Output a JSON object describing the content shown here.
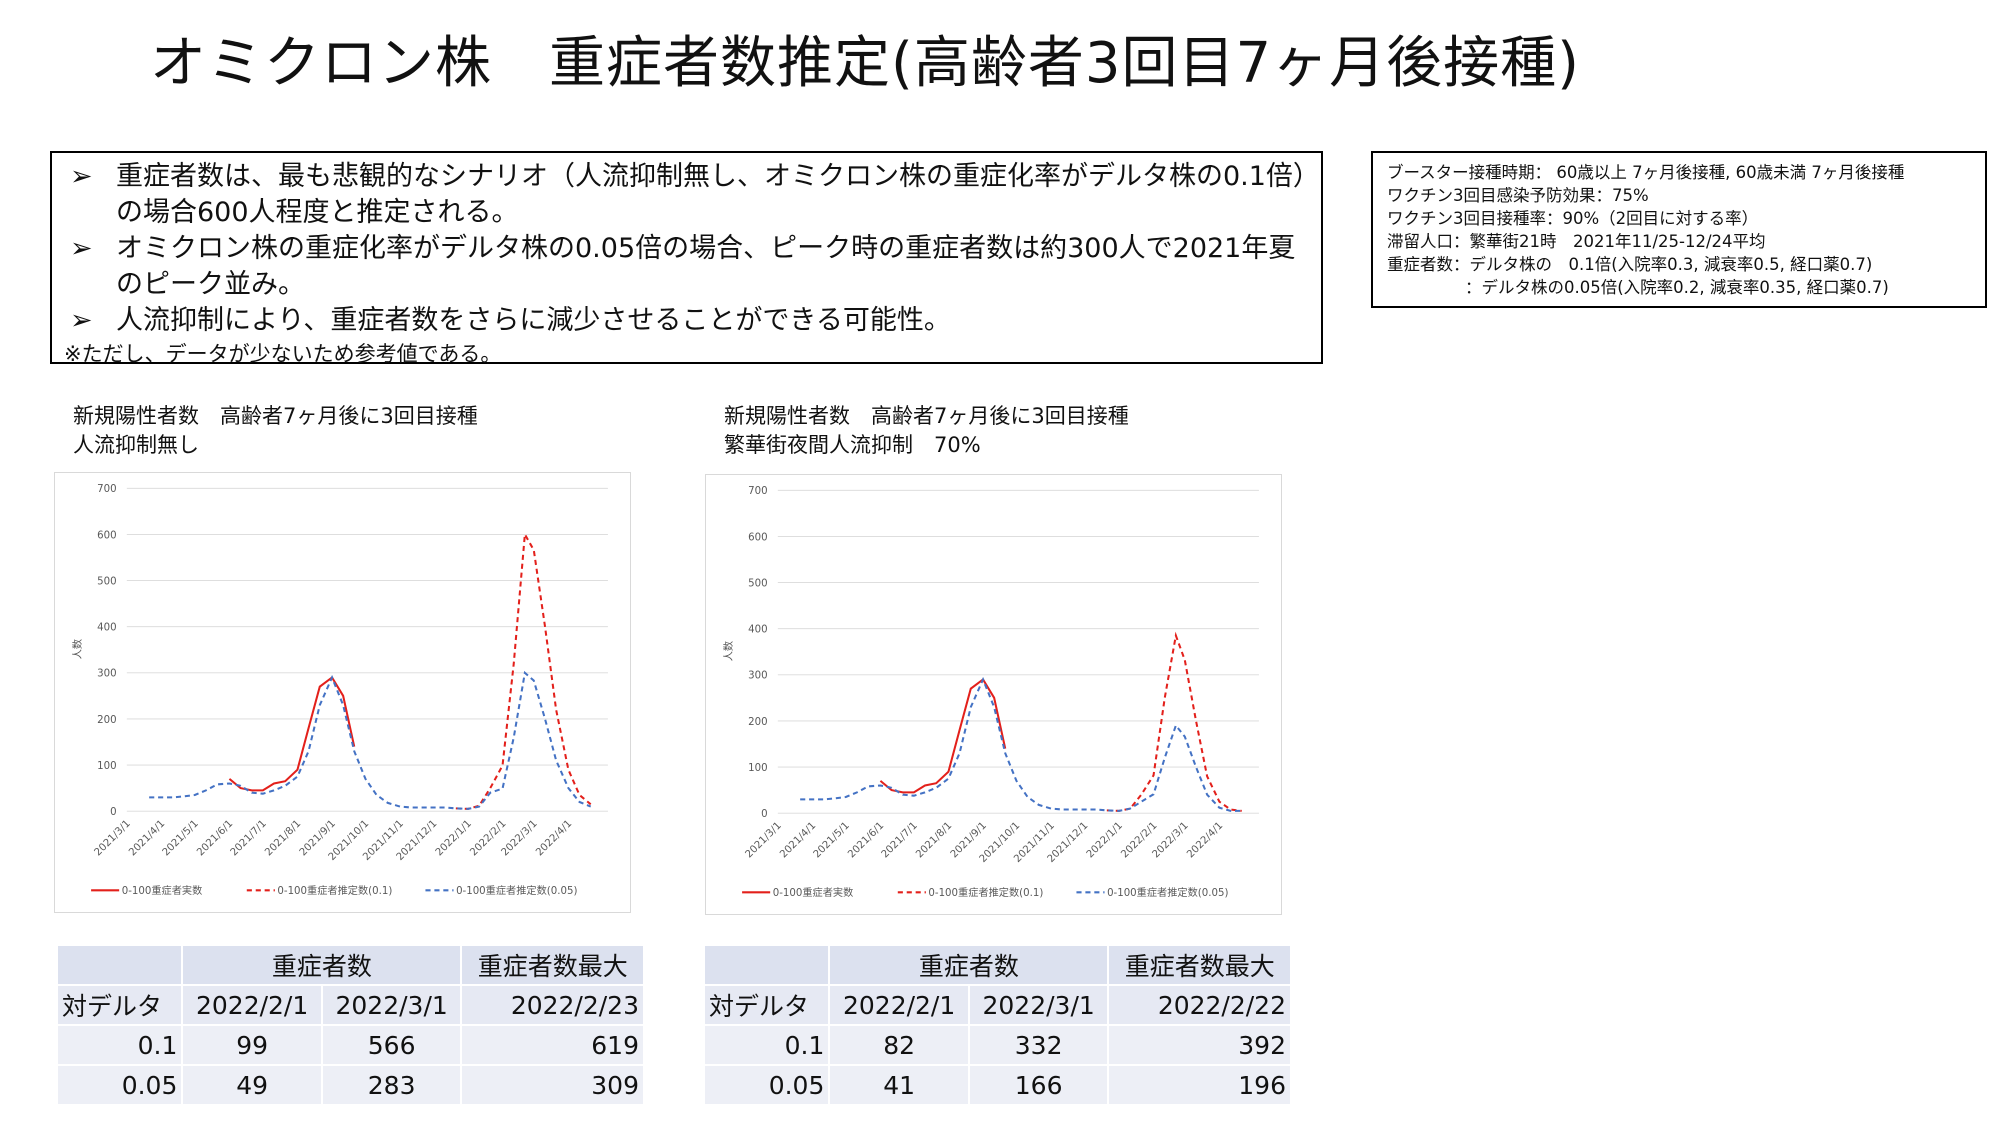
{
  "header": {
    "title": "オミクロン株　重症者数推定(高齢者3回目7ヶ月後接種)"
  },
  "summary": {
    "bullets": [
      "重症者数は、最も悲観的なシナリオ（人流抑制無し、オミクロン株の重症化率がデルタ株の0.1倍）の場合600人程度と推定される。",
      "オミクロン株の重症化率がデルタ株の0.05倍の場合、ピーク時の重症者数は約300人で2021年夏のピーク並み。",
      "人流抑制により、重症者数をさらに減少させることができる可能性。"
    ],
    "note": "※ただし、データが少ないため参考値である。"
  },
  "assumptions": [
    "ブースター接種時期： 60歳以上 7ヶ月後接種, 60歳未満 7ヶ月後接種",
    "ワクチン3回目感染予防効果：75%",
    "ワクチン3回目接種率：90%（2回目に対する率）",
    "滞留人口：繁華街21時　2021年11/25-12/24平均",
    "重症者数：デルタ株の　0.1倍(入院率0.3, 減衰率0.5, 経口薬0.7)",
    "：デルタ株の0.05倍(入院率0.2, 減衰率0.35, 経口薬0.7)"
  ],
  "chart_data": [
    {
      "type": "line",
      "title": "新規陽性者数　高齢者7ヶ月後に3回目接種",
      "subtitle": "人流抑制無し",
      "y_label": "人数",
      "x": [
        "2021/3/21",
        "2021/4/1",
        "2021/4/11",
        "2021/4/21",
        "2021/5/1",
        "2021/5/11",
        "2021/5/21",
        "2021/6/1",
        "2021/6/11",
        "2021/6/21",
        "2021/7/1",
        "2021/7/11",
        "2021/7/21",
        "2021/8/1",
        "2021/8/11",
        "2021/8/21",
        "2021/9/1",
        "2021/9/11",
        "2021/9/21",
        "2021/10/1",
        "2021/10/11",
        "2021/10/21",
        "2021/11/1",
        "2021/11/11",
        "2021/11/21",
        "2021/12/1",
        "2021/12/11",
        "2021/12/21",
        "2022/1/1",
        "2022/1/11",
        "2022/1/21",
        "2022/2/1",
        "2022/2/11",
        "2022/2/21",
        "2022/3/1",
        "2022/3/11",
        "2022/3/21",
        "2022/4/1",
        "2022/4/11",
        "2022/4/21"
      ],
      "xticks": [
        "2021/3/1",
        "2021/4/1",
        "2021/5/1",
        "2021/6/1",
        "2021/7/1",
        "2021/8/1",
        "2021/9/1",
        "2021/10/1",
        "2021/11/1",
        "2021/12/1",
        "2022/1/1",
        "2022/2/1",
        "2022/3/1",
        "2022/4/1"
      ],
      "ylim": [
        0,
        700
      ],
      "yticks": [
        0,
        100,
        200,
        300,
        400,
        500,
        600,
        700
      ],
      "grid": true,
      "legend": "bottom",
      "series": [
        {
          "name": "0-100重症者実数",
          "color": "#e3201b",
          "dash": false,
          "values": [
            null,
            null,
            null,
            null,
            null,
            null,
            null,
            70,
            50,
            45,
            45,
            60,
            65,
            90,
            180,
            270,
            290,
            250,
            140,
            null,
            null,
            null,
            null,
            null,
            null,
            null,
            null,
            null,
            null,
            null,
            null,
            null,
            null,
            null,
            null,
            null,
            null,
            null,
            null,
            null
          ]
        },
        {
          "name": "0-100重症者推定数(0.1)",
          "color": "#e3201b",
          "dash": true,
          "values": [
            null,
            null,
            null,
            null,
            null,
            null,
            null,
            null,
            null,
            null,
            null,
            null,
            null,
            null,
            null,
            null,
            null,
            null,
            null,
            null,
            null,
            null,
            null,
            null,
            null,
            null,
            null,
            6,
            5,
            12,
            50,
            99,
            320,
            600,
            566,
            400,
            220,
            90,
            35,
            15
          ]
        },
        {
          "name": "0-100重症者推定数(0.05)",
          "color": "#4472c4",
          "dash": true,
          "values": [
            30,
            30,
            30,
            32,
            35,
            45,
            58,
            60,
            55,
            40,
            38,
            45,
            55,
            75,
            130,
            230,
            290,
            230,
            130,
            70,
            35,
            18,
            10,
            8,
            8,
            8,
            8,
            6,
            5,
            10,
            40,
            49,
            160,
            300,
            283,
            200,
            110,
            50,
            20,
            10
          ]
        }
      ]
    },
    {
      "type": "line",
      "title": "新規陽性者数　高齢者7ヶ月後に3回目接種",
      "subtitle": "繁華街夜間人流抑制　70%",
      "y_label": "人数",
      "x": [
        "2021/3/21",
        "2021/4/1",
        "2021/4/11",
        "2021/4/21",
        "2021/5/1",
        "2021/5/11",
        "2021/5/21",
        "2021/6/1",
        "2021/6/11",
        "2021/6/21",
        "2021/7/1",
        "2021/7/11",
        "2021/7/21",
        "2021/8/1",
        "2021/8/11",
        "2021/8/21",
        "2021/9/1",
        "2021/9/11",
        "2021/9/21",
        "2021/10/1",
        "2021/10/11",
        "2021/10/21",
        "2021/11/1",
        "2021/11/11",
        "2021/11/21",
        "2021/12/1",
        "2021/12/11",
        "2021/12/21",
        "2022/1/1",
        "2022/1/11",
        "2022/1/21",
        "2022/2/1",
        "2022/2/11",
        "2022/2/21",
        "2022/3/1",
        "2022/3/11",
        "2022/3/21",
        "2022/4/1",
        "2022/4/11",
        "2022/4/21"
      ],
      "xticks": [
        "2021/3/1",
        "2021/4/1",
        "2021/5/1",
        "2021/6/1",
        "2021/7/1",
        "2021/8/1",
        "2021/9/1",
        "2021/10/1",
        "2021/11/1",
        "2021/12/1",
        "2022/1/1",
        "2022/2/1",
        "2022/3/1",
        "2022/4/1"
      ],
      "ylim": [
        0,
        700
      ],
      "yticks": [
        0,
        100,
        200,
        300,
        400,
        500,
        600,
        700
      ],
      "grid": true,
      "legend": "bottom",
      "series": [
        {
          "name": "0-100重症者実数",
          "color": "#e3201b",
          "dash": false,
          "values": [
            null,
            null,
            null,
            null,
            null,
            null,
            null,
            70,
            50,
            45,
            45,
            60,
            65,
            90,
            180,
            270,
            290,
            250,
            140,
            null,
            null,
            null,
            null,
            null,
            null,
            null,
            null,
            null,
            null,
            null,
            null,
            null,
            null,
            null,
            null,
            null,
            null,
            null,
            null,
            null
          ]
        },
        {
          "name": "0-100重症者推定数(0.1)",
          "color": "#e3201b",
          "dash": true,
          "values": [
            null,
            null,
            null,
            null,
            null,
            null,
            null,
            null,
            null,
            null,
            null,
            null,
            null,
            null,
            null,
            null,
            null,
            null,
            null,
            null,
            null,
            null,
            null,
            null,
            null,
            null,
            null,
            6,
            5,
            10,
            40,
            82,
            250,
            385,
            332,
            200,
            80,
            25,
            8,
            5
          ]
        },
        {
          "name": "0-100重症者推定数(0.05)",
          "color": "#4472c4",
          "dash": true,
          "values": [
            30,
            30,
            30,
            32,
            35,
            45,
            58,
            60,
            55,
            40,
            38,
            45,
            55,
            75,
            130,
            230,
            290,
            230,
            130,
            70,
            35,
            18,
            10,
            8,
            8,
            8,
            8,
            6,
            5,
            10,
            25,
            41,
            120,
            190,
            166,
            100,
            40,
            12,
            5,
            5
          ]
        }
      ]
    }
  ],
  "tables": [
    {
      "group": "重症者数",
      "max": "重症者数最大",
      "row_head": "対デルタ",
      "dates": [
        "2022/2/1",
        "2022/3/1",
        "2022/2/23"
      ],
      "rows": [
        [
          "0.1",
          "99",
          "566",
          "619"
        ],
        [
          "0.05",
          "49",
          "283",
          "309"
        ]
      ]
    },
    {
      "group": "重症者数",
      "max": "重症者数最大",
      "row_head": "対デルタ",
      "dates": [
        "2022/2/1",
        "2022/3/1",
        "2022/2/22"
      ],
      "rows": [
        [
          "0.1",
          "82",
          "332",
          "392"
        ],
        [
          "0.05",
          "41",
          "166",
          "196"
        ]
      ]
    }
  ]
}
